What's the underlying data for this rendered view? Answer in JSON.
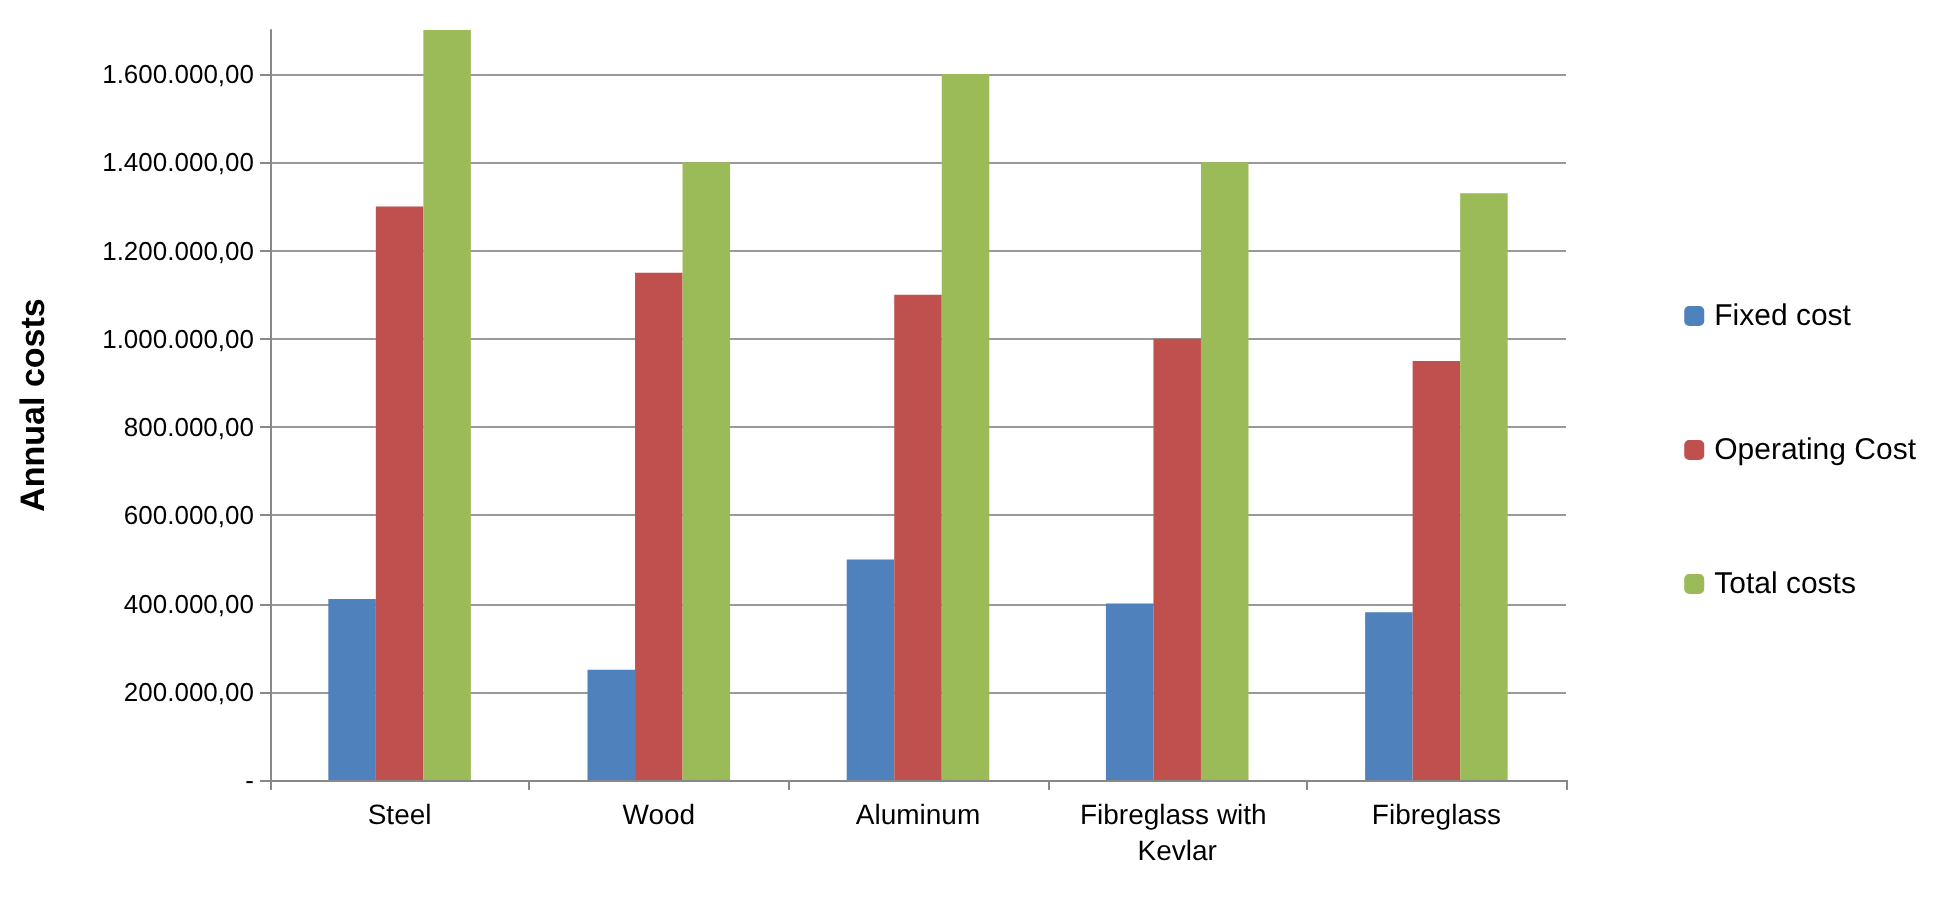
{
  "chart_data": {
    "type": "bar",
    "ylabel": "Annual costs",
    "categories": [
      "Steel",
      "Wood",
      "Aluminum",
      "Fibreglass with Kevlar",
      "Fibreglass"
    ],
    "series": [
      {
        "name": "Fixed cost",
        "color": "#4f81bd",
        "values": [
          410000,
          250000,
          500000,
          400000,
          380000
        ]
      },
      {
        "name": "Operating Cost",
        "color": "#c0504d",
        "values": [
          1300000,
          1150000,
          1100000,
          1000000,
          950000
        ]
      },
      {
        "name": "Total costs",
        "color": "#9bbb59",
        "values": [
          1700000,
          1400000,
          1600000,
          1400000,
          1330000
        ]
      }
    ],
    "ylim": [
      0,
      1700000
    ],
    "yticks": [
      {
        "value": 0,
        "label": "-"
      },
      {
        "value": 200000,
        "label": "200.000,00"
      },
      {
        "value": 400000,
        "label": "400.000,00"
      },
      {
        "value": 600000,
        "label": "600.000,00"
      },
      {
        "value": 800000,
        "label": "800.000,00"
      },
      {
        "value": 1000000,
        "label": "1.000.000,00"
      },
      {
        "value": 1200000,
        "label": "1.200.000,00"
      },
      {
        "value": 1400000,
        "label": "1.400.000,00"
      },
      {
        "value": 1600000,
        "label": "1.600.000,00"
      }
    ],
    "grid": "y",
    "legend": "right"
  }
}
